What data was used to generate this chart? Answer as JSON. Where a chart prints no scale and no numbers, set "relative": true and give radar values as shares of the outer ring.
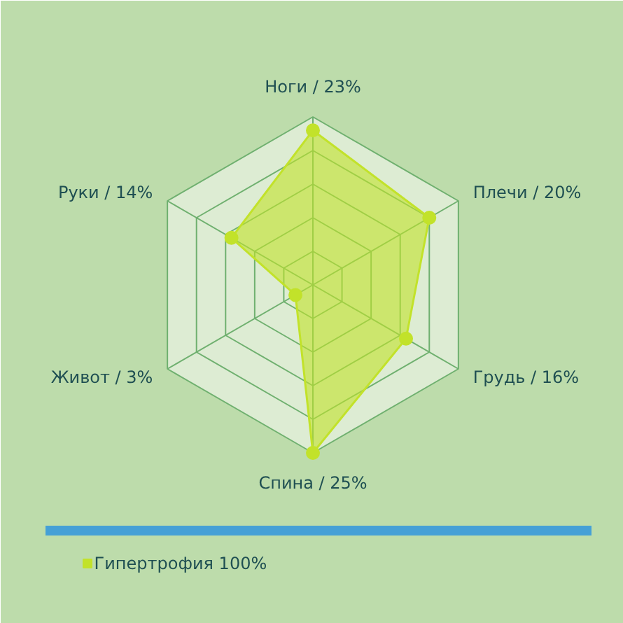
{
  "chart_data": {
    "type": "radar",
    "relative": true,
    "categories": [
      "Ноги / 23%",
      "Плечи / 20%",
      "Грудь / 16%",
      "Спина / 25%",
      "Живот / 3%",
      "Руки / 14%"
    ],
    "series": [
      {
        "name": "Гипертрофия 100%",
        "color": "#c2e22a",
        "values": [
          0.92,
          0.8,
          0.64,
          1.0,
          0.12,
          0.56
        ]
      }
    ],
    "legend": "bottom left",
    "marker": "circle",
    "grid": true
  }
}
